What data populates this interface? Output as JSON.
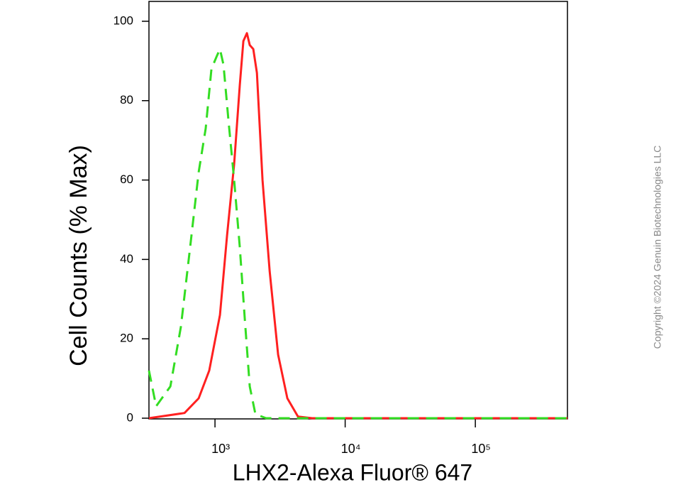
{
  "chart_data": {
    "type": "line",
    "x_label": "LHX2-Alexa Fluor® 647",
    "y_label": "Cell Counts (% Max)",
    "copyright": "Copyright ©2024 Genuin Biotechnologies LLC",
    "xscale": "log",
    "xlim": [
      311,
      510000
    ],
    "ylim": [
      0,
      105
    ],
    "xticks": [
      {
        "value": 1000,
        "label": "10³"
      },
      {
        "value": 10000,
        "label": "10⁴"
      },
      {
        "value": 100000,
        "label": "10⁵"
      }
    ],
    "yticks": [
      0,
      20,
      40,
      60,
      80,
      100
    ],
    "series": [
      {
        "color": "#ff2020",
        "dash": false,
        "x": [
          311,
          583,
          749,
          904,
          1092,
          1238,
          1403,
          1552,
          1652,
          1759,
          1849,
          1968,
          2099,
          2317,
          2630,
          3055,
          3596,
          4342,
          5580,
          510000
        ],
        "values": [
          0,
          1.3,
          5,
          12,
          26,
          46,
          64,
          84,
          95,
          97,
          94,
          93,
          87,
          60,
          37,
          16,
          5,
          0.4,
          0,
          0
        ]
      },
      {
        "color": "#33dd22",
        "dash": true,
        "x": [
          311,
          353,
          454,
          547,
          644,
          749,
          849,
          939,
          1025,
          1092,
          1162,
          1269,
          1403,
          1552,
          1694,
          1849,
          2045,
          2468,
          510000
        ],
        "values": [
          12,
          3,
          8,
          23,
          43,
          62,
          73,
          88,
          91,
          93,
          89,
          75,
          60,
          43,
          25,
          8,
          1,
          0,
          0
        ]
      }
    ]
  }
}
